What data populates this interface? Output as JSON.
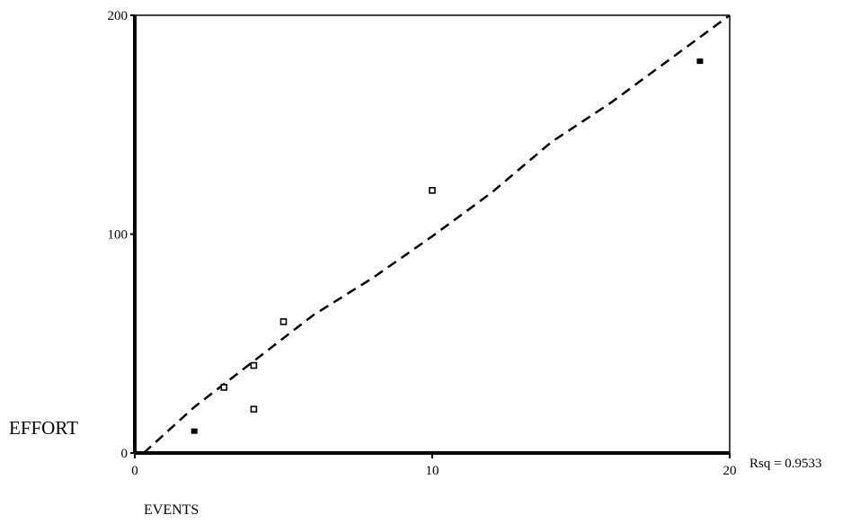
{
  "chart_data": {
    "type": "scatter",
    "title": "",
    "xlabel": "EVENTS",
    "ylabel": "EFFORT",
    "xlim": [
      0,
      20
    ],
    "ylim": [
      0,
      200
    ],
    "x_ticks": [
      0,
      10,
      20
    ],
    "y_ticks": [
      0,
      100,
      200
    ],
    "x_tick_labels": [
      "0",
      "10",
      "20"
    ],
    "y_tick_labels": [
      "0",
      "100",
      "200"
    ],
    "grid": false,
    "legend": "none",
    "annotation": "Rsq = 0.9533",
    "series": [
      {
        "marker": "open-square",
        "points": [
          {
            "x": 3,
            "y": 30
          },
          {
            "x": 4,
            "y": 40
          },
          {
            "x": 4,
            "y": 20
          },
          {
            "x": 5,
            "y": 60
          },
          {
            "x": 10,
            "y": 120
          }
        ]
      },
      {
        "marker": "filled-square",
        "points": [
          {
            "x": 2,
            "y": 10
          },
          {
            "x": 19,
            "y": 179
          }
        ]
      }
    ],
    "fit_line": {
      "style": "dashed",
      "points": [
        {
          "x": 0.3,
          "y": 0
        },
        {
          "x": 2,
          "y": 21
        },
        {
          "x": 4,
          "y": 42
        },
        {
          "x": 6,
          "y": 63
        },
        {
          "x": 8,
          "y": 80
        },
        {
          "x": 10,
          "y": 99
        },
        {
          "x": 12,
          "y": 119
        },
        {
          "x": 14,
          "y": 142
        },
        {
          "x": 16,
          "y": 160
        },
        {
          "x": 18,
          "y": 180
        },
        {
          "x": 20,
          "y": 200
        }
      ]
    },
    "colors": {
      "axis": "#000000",
      "marker": "#000000",
      "line": "#000000",
      "background": "#ffffff"
    }
  }
}
